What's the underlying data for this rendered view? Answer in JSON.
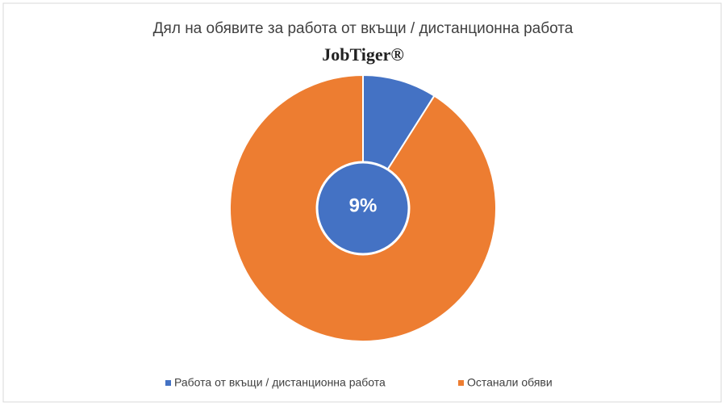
{
  "chart_data": {
    "type": "pie",
    "title": "Дял на обявите за работа от вкъщи / дистанционна работа",
    "logo": "JobTiger®",
    "categories": [
      "Работа от вкъщи / дистанционна работа",
      "Останали обяви"
    ],
    "values": [
      9,
      91
    ],
    "value_labels": [
      "9%",
      null
    ],
    "colors": [
      "#4472c4",
      "#ed7d31"
    ],
    "legend": "bottom"
  }
}
